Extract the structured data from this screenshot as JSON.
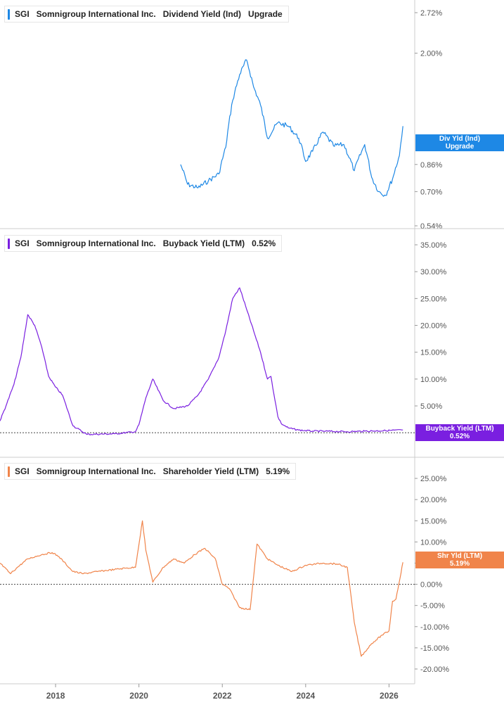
{
  "colors": {
    "dividend": "#1e88e5",
    "buyback": "#7a1fe0",
    "shareholder": "#f0844a",
    "axis": "#cccccc",
    "text": "#555555"
  },
  "panels": [
    {
      "ticker": "SGI",
      "company": "Somnigroup International Inc.",
      "metric": "Dividend Yield (Ind)",
      "value": "Upgrade",
      "tag_line1": "Div Yld (Ind)",
      "tag_line2": "Upgrade"
    },
    {
      "ticker": "SGI",
      "company": "Somnigroup International Inc.",
      "metric": "Buyback Yield (LTM)",
      "value": "0.52%",
      "tag_line1": "Buyback Yield (LTM)",
      "tag_line2": "0.52%"
    },
    {
      "ticker": "SGI",
      "company": "Somnigroup International Inc.",
      "metric": "Shareholder Yield (LTM)",
      "value": "5.19%",
      "tag_line1": "Shr Yld (LTM)",
      "tag_line2": "5.19%"
    }
  ],
  "chart_data": [
    {
      "type": "line",
      "series": [
        {
          "name": "Dividend Yield (Ind)",
          "x": [
            "2021-01",
            "2021-03",
            "2021-06",
            "2021-09",
            "2021-12",
            "2022-02",
            "2022-04",
            "2022-06",
            "2022-08",
            "2022-10",
            "2022-12",
            "2023-02",
            "2023-05",
            "2023-08",
            "2023-11",
            "2024-01",
            "2024-03",
            "2024-06",
            "2024-09",
            "2024-12",
            "2025-03",
            "2025-06",
            "2025-08",
            "2025-10",
            "2025-12",
            "2026-02",
            "2026-04",
            "2026-05"
          ],
          "values": [
            0.86,
            0.74,
            0.72,
            0.76,
            0.8,
            0.98,
            1.4,
            1.7,
            1.9,
            1.55,
            1.35,
            1.05,
            1.18,
            1.15,
            1.05,
            0.88,
            0.95,
            1.1,
            0.99,
            1.0,
            0.82,
            1.0,
            0.78,
            0.7,
            0.68,
            0.77,
            0.92,
            1.15
          ]
        }
      ],
      "xlim": [
        "2016-09",
        "2026-08"
      ],
      "yscale": "log",
      "ylim": [
        0.54,
        2.72
      ],
      "yticks": [
        "2.72%",
        "2.00%",
        "0.86%",
        "0.70%",
        "0.54%"
      ],
      "ytick_values": [
        2.72,
        2.0,
        0.86,
        0.7,
        0.54
      ],
      "grid": false
    },
    {
      "type": "line",
      "series": [
        {
          "name": "Buyback Yield (LTM)",
          "x": [
            "2016-09",
            "2016-11",
            "2017-01",
            "2017-03",
            "2017-05",
            "2017-07",
            "2017-09",
            "2017-11",
            "2018-01",
            "2018-03",
            "2018-06",
            "2018-10",
            "2019-06",
            "2019-12",
            "2020-01",
            "2020-03",
            "2020-05",
            "2020-08",
            "2020-11",
            "2021-03",
            "2021-06",
            "2021-09",
            "2021-12",
            "2022-02",
            "2022-04",
            "2022-06",
            "2022-08",
            "2022-10",
            "2022-12",
            "2023-02",
            "2023-03",
            "2023-05",
            "2023-06",
            "2023-08",
            "2023-11",
            "2024-03",
            "2024-06",
            "2025-01",
            "2025-06",
            "2025-12",
            "2026-05"
          ],
          "values": [
            2.2,
            5.5,
            9.0,
            14.0,
            22.0,
            20.0,
            16.0,
            10.5,
            8.5,
            7.0,
            1.3,
            -0.3,
            -0.2,
            0.2,
            1.5,
            6.5,
            10.0,
            6.0,
            4.5,
            5.0,
            7.0,
            10.0,
            14.0,
            19.0,
            25.0,
            27.0,
            23.0,
            19.0,
            15.0,
            10.0,
            10.5,
            3.0,
            1.7,
            0.9,
            0.5,
            0.3,
            0.3,
            0.2,
            0.3,
            0.4,
            0.52
          ]
        }
      ],
      "xlim": [
        "2016-09",
        "2026-08"
      ],
      "ylim": [
        -0.5,
        35
      ],
      "yticks": [
        "35.00%",
        "30.00%",
        "25.00%",
        "20.00%",
        "15.00%",
        "10.00%",
        "5.00%"
      ],
      "ytick_values": [
        35,
        30,
        25,
        20,
        15,
        10,
        5
      ],
      "zero_line": true
    },
    {
      "type": "line",
      "series": [
        {
          "name": "Shareholder Yield (LTM)",
          "x": [
            "2016-09",
            "2016-12",
            "2017-02",
            "2017-05",
            "2017-09",
            "2017-12",
            "2018-02",
            "2018-06",
            "2018-09",
            "2019-01",
            "2019-06",
            "2019-09",
            "2019-12",
            "2020-02",
            "2020-03",
            "2020-05",
            "2020-08",
            "2020-11",
            "2021-02",
            "2021-05",
            "2021-08",
            "2021-11",
            "2022-01",
            "2022-03",
            "2022-06",
            "2022-09",
            "2022-11",
            "2023-02",
            "2023-05",
            "2023-09",
            "2024-01",
            "2024-06",
            "2024-10",
            "2025-01",
            "2025-03",
            "2025-05",
            "2025-08",
            "2025-11",
            "2026-01",
            "2026-02",
            "2026-03",
            "2026-05"
          ],
          "values": [
            5.0,
            2.5,
            4.0,
            6.0,
            7.0,
            7.5,
            6.5,
            3.0,
            2.5,
            3.0,
            3.5,
            3.8,
            4.0,
            15.0,
            8.0,
            0.5,
            4.0,
            6.0,
            5.0,
            7.0,
            8.5,
            6.0,
            0.0,
            -1.0,
            -5.5,
            -6.0,
            9.5,
            6.0,
            4.5,
            3.0,
            4.5,
            5.0,
            4.8,
            4.0,
            -9.0,
            -17.0,
            -14.0,
            -12.0,
            -11.0,
            -4.0,
            -3.5,
            5.19
          ]
        }
      ],
      "xlim": [
        "2016-09",
        "2026-08"
      ],
      "ylim": [
        -21,
        27
      ],
      "yticks": [
        "25.00%",
        "20.00%",
        "15.00%",
        "10.00%",
        "5.00%",
        "0.00%",
        "-5.00%",
        "-10.00%",
        "-15.00%",
        "-20.00%"
      ],
      "ytick_values": [
        25,
        20,
        15,
        10,
        5,
        0,
        -5,
        -10,
        -15,
        -20
      ],
      "zero_line": true
    }
  ],
  "x_axis": {
    "ticks": [
      "2018",
      "2020",
      "2022",
      "2024",
      "2026"
    ]
  }
}
